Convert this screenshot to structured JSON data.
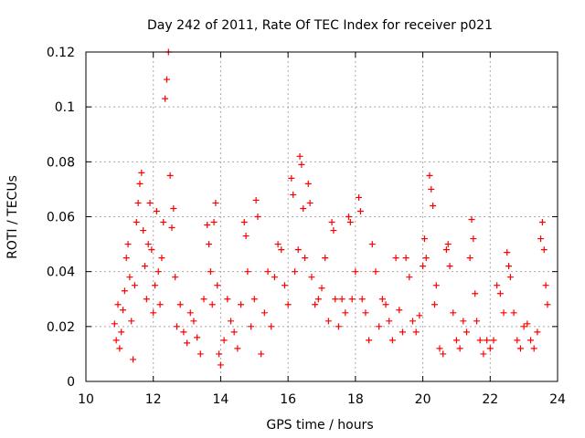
{
  "chart_data": {
    "type": "scatter",
    "title": "Day 242 of 2011, Rate Of TEC Index for receiver p021",
    "xlabel": "GPS time / hours",
    "ylabel": "ROTI / TECUs",
    "xlim": [
      10,
      24
    ],
    "ylim": [
      0,
      0.12
    ],
    "x_ticks": [
      10,
      12,
      14,
      16,
      18,
      20,
      22,
      24
    ],
    "x_tick_labels": [
      "10",
      "12",
      "14",
      "16",
      "18",
      "20",
      "22",
      "24"
    ],
    "y_ticks": [
      0,
      0.02,
      0.04,
      0.06,
      0.08,
      0.1,
      0.12
    ],
    "y_tick_labels": [
      "0",
      "0.02",
      "0.04",
      "0.06",
      "0.08",
      "0.1",
      "0.12"
    ],
    "grid": true,
    "legend": "none",
    "marker": "plus",
    "series": [
      {
        "color": "#ff0000",
        "points": [
          [
            10.85,
            0.021
          ],
          [
            10.9,
            0.015
          ],
          [
            10.95,
            0.028
          ],
          [
            11.0,
            0.012
          ],
          [
            11.05,
            0.018
          ],
          [
            11.1,
            0.026
          ],
          [
            11.15,
            0.033
          ],
          [
            11.2,
            0.045
          ],
          [
            11.25,
            0.05
          ],
          [
            11.3,
            0.038
          ],
          [
            11.35,
            0.022
          ],
          [
            11.4,
            0.008
          ],
          [
            11.45,
            0.035
          ],
          [
            11.5,
            0.058
          ],
          [
            11.55,
            0.065
          ],
          [
            11.6,
            0.072
          ],
          [
            11.65,
            0.076
          ],
          [
            11.7,
            0.055
          ],
          [
            11.75,
            0.042
          ],
          [
            11.8,
            0.03
          ],
          [
            11.85,
            0.05
          ],
          [
            11.9,
            0.065
          ],
          [
            11.95,
            0.048
          ],
          [
            12.0,
            0.025
          ],
          [
            12.05,
            0.035
          ],
          [
            12.1,
            0.062
          ],
          [
            12.15,
            0.04
          ],
          [
            12.2,
            0.028
          ],
          [
            12.25,
            0.045
          ],
          [
            12.3,
            0.058
          ],
          [
            12.35,
            0.103
          ],
          [
            12.4,
            0.11
          ],
          [
            12.45,
            0.12
          ],
          [
            12.5,
            0.075
          ],
          [
            12.55,
            0.056
          ],
          [
            12.6,
            0.063
          ],
          [
            12.65,
            0.038
          ],
          [
            12.7,
            0.02
          ],
          [
            12.8,
            0.028
          ],
          [
            12.9,
            0.018
          ],
          [
            13.0,
            0.014
          ],
          [
            13.1,
            0.025
          ],
          [
            13.2,
            0.022
          ],
          [
            13.3,
            0.016
          ],
          [
            13.4,
            0.01
          ],
          [
            13.5,
            0.03
          ],
          [
            13.6,
            0.057
          ],
          [
            13.65,
            0.05
          ],
          [
            13.7,
            0.04
          ],
          [
            13.75,
            0.028
          ],
          [
            13.8,
            0.058
          ],
          [
            13.85,
            0.065
          ],
          [
            13.9,
            0.035
          ],
          [
            13.95,
            0.01
          ],
          [
            14.0,
            0.006
          ],
          [
            14.1,
            0.015
          ],
          [
            14.2,
            0.03
          ],
          [
            14.3,
            0.022
          ],
          [
            14.4,
            0.018
          ],
          [
            14.5,
            0.012
          ],
          [
            14.6,
            0.028
          ],
          [
            14.7,
            0.058
          ],
          [
            14.75,
            0.053
          ],
          [
            14.8,
            0.04
          ],
          [
            14.9,
            0.02
          ],
          [
            15.0,
            0.03
          ],
          [
            15.05,
            0.066
          ],
          [
            15.1,
            0.06
          ],
          [
            15.2,
            0.01
          ],
          [
            15.3,
            0.025
          ],
          [
            15.4,
            0.04
          ],
          [
            15.5,
            0.02
          ],
          [
            15.6,
            0.038
          ],
          [
            15.7,
            0.05
          ],
          [
            15.8,
            0.048
          ],
          [
            15.9,
            0.035
          ],
          [
            16.0,
            0.028
          ],
          [
            16.1,
            0.074
          ],
          [
            16.15,
            0.068
          ],
          [
            16.2,
            0.04
          ],
          [
            16.3,
            0.048
          ],
          [
            16.35,
            0.082
          ],
          [
            16.4,
            0.079
          ],
          [
            16.45,
            0.063
          ],
          [
            16.5,
            0.045
          ],
          [
            16.6,
            0.072
          ],
          [
            16.65,
            0.065
          ],
          [
            16.7,
            0.038
          ],
          [
            16.8,
            0.028
          ],
          [
            16.9,
            0.03
          ],
          [
            17.0,
            0.034
          ],
          [
            17.1,
            0.045
          ],
          [
            17.2,
            0.022
          ],
          [
            17.3,
            0.058
          ],
          [
            17.35,
            0.055
          ],
          [
            17.4,
            0.03
          ],
          [
            17.5,
            0.02
          ],
          [
            17.6,
            0.03
          ],
          [
            17.7,
            0.025
          ],
          [
            17.8,
            0.06
          ],
          [
            17.85,
            0.058
          ],
          [
            17.9,
            0.03
          ],
          [
            18.0,
            0.04
          ],
          [
            18.1,
            0.067
          ],
          [
            18.15,
            0.062
          ],
          [
            18.2,
            0.03
          ],
          [
            18.3,
            0.025
          ],
          [
            18.4,
            0.015
          ],
          [
            18.5,
            0.05
          ],
          [
            18.6,
            0.04
          ],
          [
            18.7,
            0.02
          ],
          [
            18.8,
            0.03
          ],
          [
            18.9,
            0.028
          ],
          [
            19.0,
            0.022
          ],
          [
            19.1,
            0.015
          ],
          [
            19.2,
            0.045
          ],
          [
            19.3,
            0.026
          ],
          [
            19.4,
            0.018
          ],
          [
            19.5,
            0.045
          ],
          [
            19.6,
            0.038
          ],
          [
            19.7,
            0.022
          ],
          [
            19.8,
            0.018
          ],
          [
            19.9,
            0.024
          ],
          [
            20.0,
            0.042
          ],
          [
            20.05,
            0.052
          ],
          [
            20.1,
            0.045
          ],
          [
            20.2,
            0.075
          ],
          [
            20.25,
            0.07
          ],
          [
            20.3,
            0.064
          ],
          [
            20.35,
            0.028
          ],
          [
            20.4,
            0.035
          ],
          [
            20.5,
            0.012
          ],
          [
            20.6,
            0.01
          ],
          [
            20.7,
            0.048
          ],
          [
            20.75,
            0.05
          ],
          [
            20.8,
            0.042
          ],
          [
            20.9,
            0.025
          ],
          [
            21.0,
            0.015
          ],
          [
            21.1,
            0.012
          ],
          [
            21.2,
            0.022
          ],
          [
            21.3,
            0.018
          ],
          [
            21.4,
            0.045
          ],
          [
            21.45,
            0.059
          ],
          [
            21.5,
            0.052
          ],
          [
            21.55,
            0.032
          ],
          [
            21.6,
            0.022
          ],
          [
            21.7,
            0.015
          ],
          [
            21.8,
            0.01
          ],
          [
            21.9,
            0.015
          ],
          [
            22.0,
            0.012
          ],
          [
            22.1,
            0.015
          ],
          [
            22.2,
            0.035
          ],
          [
            22.3,
            0.032
          ],
          [
            22.4,
            0.025
          ],
          [
            22.5,
            0.047
          ],
          [
            22.55,
            0.042
          ],
          [
            22.6,
            0.038
          ],
          [
            22.7,
            0.025
          ],
          [
            22.8,
            0.015
          ],
          [
            22.9,
            0.012
          ],
          [
            23.0,
            0.02
          ],
          [
            23.1,
            0.021
          ],
          [
            23.2,
            0.015
          ],
          [
            23.3,
            0.012
          ],
          [
            23.4,
            0.018
          ],
          [
            23.5,
            0.052
          ],
          [
            23.55,
            0.058
          ],
          [
            23.6,
            0.048
          ],
          [
            23.65,
            0.035
          ],
          [
            23.7,
            0.028
          ]
        ]
      }
    ]
  }
}
